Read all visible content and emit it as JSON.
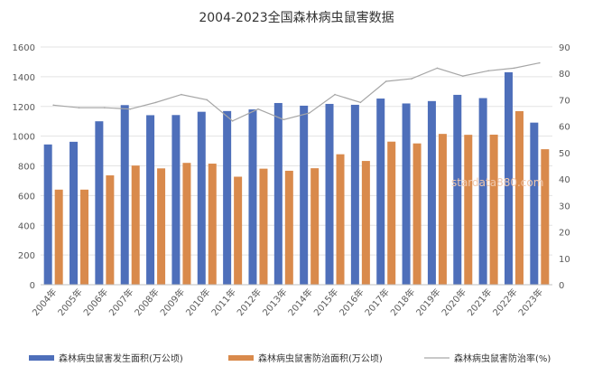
{
  "chart_data": {
    "type": "bar",
    "title": "2004-2023全国森林病虫鼠害数据",
    "categories": [
      "2004年",
      "2005年",
      "2006年",
      "2007年",
      "2008年",
      "2009年",
      "2010年",
      "2011年",
      "2012年",
      "2013年",
      "2014年",
      "2015年",
      "2016年",
      "2017年",
      "2018年",
      "2019年",
      "2020年",
      "2021年",
      "2022年",
      "2023年"
    ],
    "series": [
      {
        "name": "森林病虫鼠害发生面积(万公顷)",
        "type": "bar",
        "axis": "left",
        "color": "#4e6fba",
        "values": [
          944,
          962,
          1100,
          1209,
          1141,
          1142,
          1164,
          1169,
          1180,
          1223,
          1205,
          1217,
          1211,
          1253,
          1220,
          1236,
          1278,
          1256,
          1430,
          1091
        ]
      },
      {
        "name": "森林病虫鼠害防治面积(万公顷)",
        "type": "bar",
        "axis": "left",
        "color": "#d98a4c",
        "values": [
          640,
          640,
          736,
          802,
          783,
          820,
          815,
          727,
          781,
          767,
          784,
          878,
          833,
          963,
          951,
          1015,
          1009,
          1010,
          1168,
          912
        ]
      },
      {
        "name": "森林病虫鼠害防治率(%)",
        "type": "line",
        "axis": "right",
        "color": "#a6a6a6",
        "values": [
          68,
          67,
          67,
          66.5,
          69,
          72,
          70,
          62,
          66.5,
          62.5,
          65,
          72,
          69,
          77,
          78,
          82,
          79,
          81,
          82,
          84
        ]
      }
    ],
    "y_left": {
      "min": 0,
      "max": 1600,
      "ticks": [
        0,
        200,
        400,
        600,
        800,
        1000,
        1200,
        1400,
        1600
      ]
    },
    "y_right": {
      "min": 0,
      "max": 90,
      "ticks": [
        0,
        10,
        20,
        30,
        40,
        50,
        60,
        70,
        80,
        90
      ]
    },
    "grid": true,
    "legend_position": "bottom",
    "watermark": "stardata880.com"
  }
}
